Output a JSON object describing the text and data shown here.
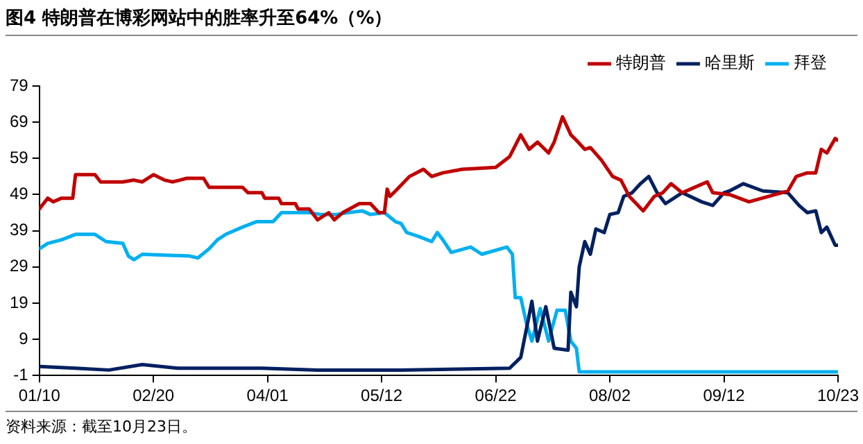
{
  "chart_data": {
    "type": "line",
    "title": "图4  特朗普在博彩网站中的胜率升至64%（%）",
    "annotations": [
      "资料来源：截至10月23日。"
    ],
    "xlim": [
      "--01-10",
      "--10-23"
    ],
    "xticks": [
      {
        "value": "--01-10",
        "label": "01/10"
      },
      {
        "value": "--02-20",
        "label": "02/20"
      },
      {
        "value": "--04-01",
        "label": "04/01"
      },
      {
        "value": "--05-12",
        "label": "05/12"
      },
      {
        "value": "--06-22",
        "label": "06/22"
      },
      {
        "value": "--08-02",
        "label": "08/02"
      },
      {
        "value": "--09-12",
        "label": "09/12"
      },
      {
        "value": "--10-23",
        "label": "10/23"
      }
    ],
    "ylim": [
      -1,
      79
    ],
    "yticks": [
      -1,
      9,
      19,
      29,
      39,
      49,
      59,
      69,
      79
    ],
    "grid": false,
    "legend": "top right",
    "marker": "none",
    "line_style": "solid",
    "series": [
      {
        "name": "特朗普",
        "color": "#c00000",
        "x": [
          "--01-10",
          "--01-13",
          "--01-15",
          "--01-18",
          "--01-22",
          "--01-23",
          "--01-30",
          "--02-01",
          "--02-09",
          "--02-13",
          "--02-16",
          "--02-20",
          "--02-24",
          "--02-27",
          "--03-03",
          "--03-09",
          "--03-11",
          "--03-23",
          "--03-25",
          "--03-30",
          "--03-31",
          "--04-05",
          "--04-06",
          "--04-11",
          "--04-12",
          "--04-16",
          "--04-19",
          "--04-23",
          "--04-25",
          "--04-28",
          "--05-04",
          "--05-08",
          "--05-11",
          "--05-13",
          "--05-14",
          "--05-15",
          "--05-17",
          "--05-22",
          "--05-27",
          "--05-30",
          "--06-03",
          "--06-10",
          "--06-22",
          "--06-27",
          "--07-01",
          "--07-04",
          "--07-07",
          "--07-11",
          "--07-13",
          "--07-16",
          "--07-19",
          "--07-21",
          "--07-24",
          "--07-26",
          "--07-30",
          "--08-03",
          "--08-06",
          "--08-09",
          "--08-14",
          "--08-18",
          "--08-21",
          "--08-24",
          "--08-28",
          "--09-06",
          "--09-08",
          "--09-14",
          "--09-21",
          "--09-28",
          "--10-05",
          "--10-08",
          "--10-12",
          "--10-15",
          "--10-17",
          "--10-19",
          "--10-22",
          "--10-23"
        ],
        "values": [
          45,
          48,
          47,
          48,
          48,
          54.5,
          54.5,
          52.5,
          52.5,
          53,
          52.5,
          54.5,
          53,
          52.5,
          53.5,
          53.5,
          51,
          51,
          49.5,
          49.5,
          48,
          48,
          46.5,
          46.5,
          45,
          45,
          42,
          44,
          42,
          44,
          46.5,
          46.5,
          44,
          44,
          50.5,
          48.5,
          50,
          54,
          56,
          54,
          55,
          56,
          56.5,
          59.5,
          65.5,
          61.5,
          63.5,
          60.5,
          63.5,
          70.5,
          65.5,
          64,
          61.5,
          62,
          58.5,
          54,
          53,
          48.5,
          44.5,
          48.5,
          49.5,
          52,
          49.5,
          52.5,
          49.5,
          49,
          47,
          48.5,
          50,
          54,
          55,
          55,
          61.5,
          60.5,
          64.5,
          64
        ]
      },
      {
        "name": "哈里斯",
        "color": "#002060",
        "x": [
          "--01-10",
          "--01-23",
          "--02-04",
          "--02-16",
          "--02-29",
          "--03-30",
          "--04-19",
          "--05-19",
          "--06-27",
          "--07-01",
          "--07-05",
          "--07-07",
          "--07-10",
          "--07-13",
          "--07-18",
          "--07-19",
          "--07-21",
          "--07-22",
          "--07-24",
          "--07-26",
          "--07-28",
          "--07-31",
          "--08-02",
          "--08-05",
          "--08-07",
          "--08-10",
          "--08-13",
          "--08-16",
          "--08-19",
          "--08-22",
          "--08-28",
          "--09-04",
          "--09-08",
          "--09-12",
          "--09-14",
          "--09-19",
          "--09-26",
          "--10-05",
          "--10-09",
          "--10-12",
          "--10-15",
          "--10-17",
          "--10-19",
          "--10-22",
          "--10-23"
        ],
        "values": [
          1.5,
          1,
          0.5,
          2,
          1,
          1,
          0.5,
          0.5,
          1,
          4,
          19.5,
          8.5,
          18,
          6.5,
          6,
          22,
          18,
          29,
          36,
          32.5,
          39.5,
          38.5,
          43.5,
          44,
          48.5,
          49.5,
          52,
          54,
          49.5,
          46.5,
          49.5,
          47,
          46,
          49.5,
          50,
          52,
          50,
          49.5,
          46,
          44,
          44.5,
          38.5,
          40,
          35,
          35
        ]
      },
      {
        "name": "拜登",
        "color": "#00b0f0",
        "x": [
          "--01-10",
          "--01-13",
          "--01-18",
          "--01-23",
          "--01-30",
          "--02-03",
          "--02-09",
          "--02-11",
          "--02-13",
          "--02-16",
          "--03-04",
          "--03-07",
          "--03-11",
          "--03-14",
          "--03-17",
          "--03-23",
          "--03-28",
          "--04-03",
          "--04-06",
          "--04-16",
          "--04-20",
          "--04-26",
          "--04-30",
          "--05-05",
          "--05-08",
          "--05-13",
          "--05-17",
          "--05-19",
          "--05-21",
          "--05-25",
          "--05-30",
          "--06-01",
          "--06-03",
          "--06-06",
          "--06-13",
          "--06-17",
          "--06-26",
          "--06-28",
          "--06-29",
          "--07-01",
          "--07-03",
          "--07-05",
          "--07-08",
          "--07-11",
          "--07-14",
          "--07-17",
          "--07-19",
          "--07-21",
          "--07-22",
          "--10-23"
        ],
        "values": [
          34,
          35.5,
          36.5,
          38,
          38,
          36,
          35.5,
          32,
          31,
          32.5,
          32,
          31.5,
          34,
          36.5,
          38,
          40,
          41.5,
          41.5,
          44,
          44,
          43.5,
          43.5,
          44,
          44.5,
          43.5,
          44,
          41.5,
          41,
          38.5,
          37.5,
          36,
          38.5,
          36.5,
          33,
          34.5,
          32.5,
          34.5,
          32.5,
          20.5,
          20.5,
          13.5,
          8.5,
          17.5,
          8.5,
          17,
          17,
          8.5,
          6.5,
          0,
          0
        ]
      }
    ]
  }
}
